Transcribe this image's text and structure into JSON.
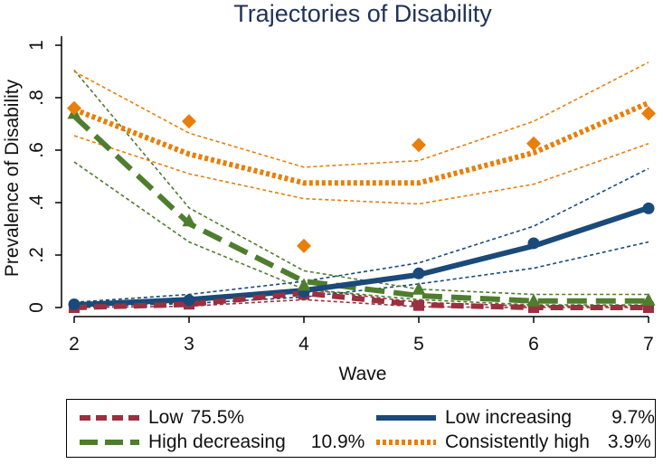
{
  "chart_data": {
    "type": "line",
    "title": "Trajectories of Disability",
    "xlabel": "Wave",
    "ylabel": "Prevalence of Disability",
    "x": [
      2,
      3,
      4,
      5,
      6,
      7
    ],
    "x_ticks": [
      "2",
      "3",
      "4",
      "5",
      "6",
      "7"
    ],
    "y_ticks": [
      "0",
      ".2",
      ".4",
      ".6",
      ".8",
      "1"
    ],
    "y_tick_values": [
      0,
      0.2,
      0.4,
      0.6,
      0.8,
      1
    ],
    "xlim": [
      2,
      7
    ],
    "ylim": [
      0,
      1
    ],
    "grid": false,
    "legend_position": "bottom",
    "series": [
      {
        "name": "Low",
        "share": "75.5%",
        "color": "#9b3040",
        "style": "dashed",
        "marker": "square",
        "fitted": [
          0.0,
          0.012,
          0.055,
          0.01,
          0.0,
          0.0
        ],
        "observed": [
          0.0,
          0.013,
          0.05,
          0.008,
          0.0,
          0.0
        ],
        "ci_lower": [
          0.0,
          0.005,
          0.03,
          0.003,
          0.0,
          0.0
        ],
        "ci_upper": [
          0.005,
          0.02,
          0.07,
          0.02,
          0.005,
          0.005
        ]
      },
      {
        "name": "Low increasing",
        "share": "9.7%",
        "color": "#1a4a7a",
        "style": "solid",
        "marker": "circle",
        "fitted": [
          0.01,
          0.03,
          0.065,
          0.125,
          0.235,
          0.38
        ],
        "observed": [
          0.012,
          0.028,
          0.06,
          0.13,
          0.245,
          0.378
        ],
        "ci_lower": [
          0.005,
          0.015,
          0.04,
          0.09,
          0.15,
          0.25
        ],
        "ci_upper": [
          0.02,
          0.05,
          0.1,
          0.17,
          0.31,
          0.53
        ]
      },
      {
        "name": "High decreasing",
        "share": "10.9%",
        "color": "#4f7d2e",
        "style": "longdash",
        "marker": "triangle",
        "fitted": [
          0.73,
          0.32,
          0.1,
          0.045,
          0.025,
          0.025
        ],
        "observed": [
          0.74,
          0.33,
          0.085,
          0.07,
          0.025,
          0.028
        ],
        "ci_lower": [
          0.555,
          0.25,
          0.07,
          0.03,
          0.01,
          0.01
        ],
        "ci_upper": [
          0.905,
          0.38,
          0.14,
          0.07,
          0.05,
          0.05
        ]
      },
      {
        "name": "Consistently high",
        "share": "3.9%",
        "color": "#e87e0c",
        "style": "dotted",
        "marker": "diamond",
        "fitted": [
          0.755,
          0.585,
          0.475,
          0.475,
          0.59,
          0.78
        ],
        "observed": [
          0.76,
          0.71,
          0.235,
          0.62,
          0.625,
          0.74
        ],
        "ci_lower": [
          0.655,
          0.51,
          0.415,
          0.395,
          0.47,
          0.625
        ],
        "ci_upper": [
          0.9,
          0.665,
          0.535,
          0.56,
          0.71,
          0.935
        ]
      }
    ]
  },
  "colors": {
    "title": "#1f3358",
    "axis": "#000000"
  }
}
